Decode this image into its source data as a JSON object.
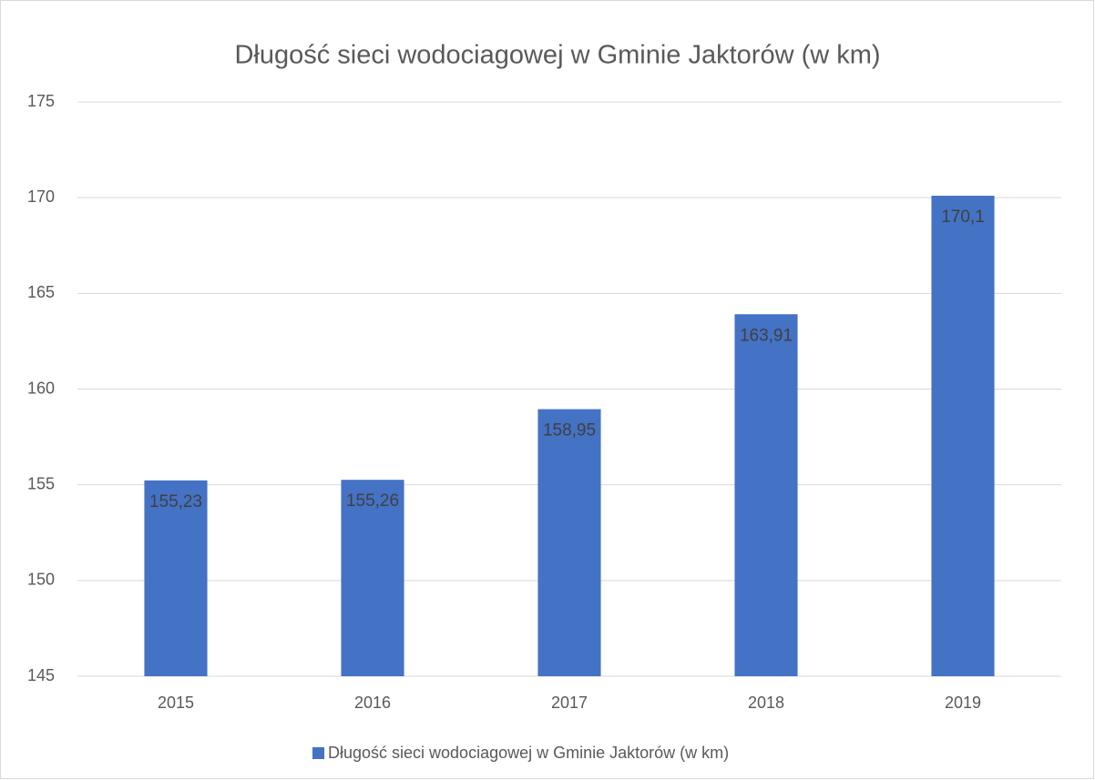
{
  "chart_data": {
    "type": "bar",
    "title": "Długość sieci wodociagowej w Gminie Jaktorów (w km)",
    "categories": [
      "2015",
      "2016",
      "2017",
      "2018",
      "2019"
    ],
    "series": [
      {
        "name": "Długość sieci wodociagowej w Gminie Jaktorów (w km)",
        "color": "#4472c4",
        "values": [
          155.23,
          155.26,
          158.95,
          163.91,
          170.1
        ],
        "value_labels": [
          "155,23",
          "155,26",
          "158,95",
          "163,91",
          "170,1"
        ]
      }
    ],
    "ylim": [
      145,
      175
    ],
    "yticks": [
      145,
      150,
      155,
      160,
      165,
      170,
      175
    ],
    "grid": true,
    "legend": "bottom"
  }
}
